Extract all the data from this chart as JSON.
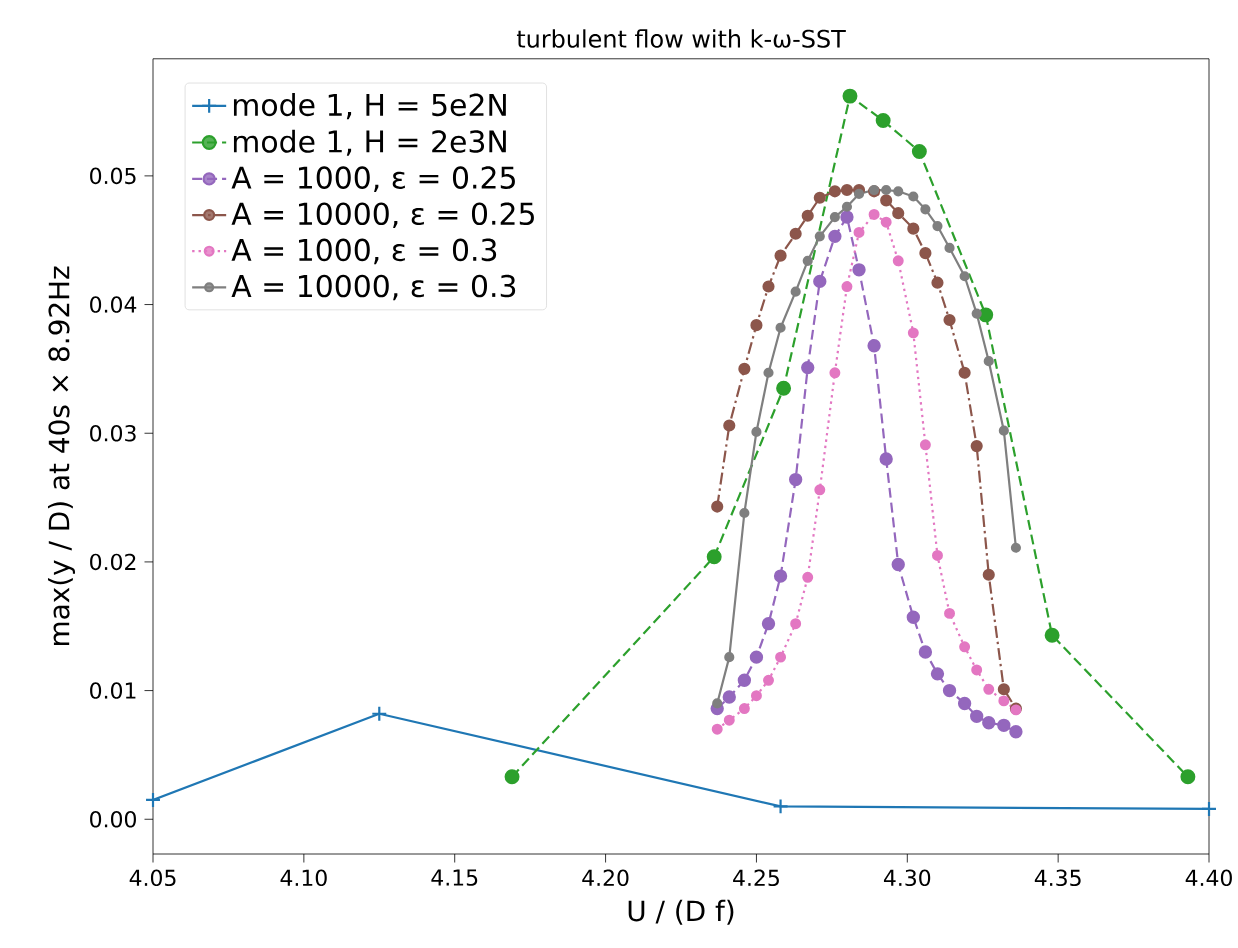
{
  "chart_data": {
    "type": "line",
    "title": "turbulent flow with k-ω-SST",
    "xlabel": "U / (D f)",
    "ylabel": "max(y / D) at 40s × 8.92Hz",
    "xlim": [
      4.05,
      4.4
    ],
    "ylim": [
      -0.0027,
      0.0591
    ],
    "xticks": [
      {
        "value": 4.05,
        "label": "4.05"
      },
      {
        "value": 4.1,
        "label": "4.10"
      },
      {
        "value": 4.15,
        "label": "4.15"
      },
      {
        "value": 4.2,
        "label": "4.20"
      },
      {
        "value": 4.25,
        "label": "4.25"
      },
      {
        "value": 4.3,
        "label": "4.30"
      },
      {
        "value": 4.35,
        "label": "4.35"
      },
      {
        "value": 4.4,
        "label": "4.40"
      }
    ],
    "yticks": [
      {
        "value": 0,
        "label": "0.00"
      },
      {
        "value": 0.01,
        "label": "0.01"
      },
      {
        "value": 0.02,
        "label": "0.02"
      },
      {
        "value": 0.03,
        "label": "0.03"
      },
      {
        "value": 0.04,
        "label": "0.04"
      },
      {
        "value": 0.05,
        "label": "0.05"
      }
    ],
    "grid": false,
    "legend": "top left",
    "series": [
      {
        "name": "mode 1, H = 5e2N",
        "color": "#1f77b4",
        "marker": "cross",
        "line_style": "solid",
        "x": [
          4.05,
          4.125,
          4.258,
          4.4
        ],
        "values": [
          0.0015,
          0.0082,
          0.001,
          0.0008
        ]
      },
      {
        "name": "mode 1, H = 2e3N",
        "color": "#2ca02c",
        "marker": "circle",
        "line_style": "dashed",
        "x": [
          4.169,
          4.236,
          4.259,
          4.281,
          4.292,
          4.304,
          4.326,
          4.348,
          4.393
        ],
        "values": [
          0.0033,
          0.0204,
          0.0335,
          0.0562,
          0.0543,
          0.0519,
          0.0392,
          0.0143,
          0.0033
        ]
      },
      {
        "name": "A = 1000, ε = 0.25",
        "color": "#9467bd",
        "marker": "circle",
        "line_style": "dashed",
        "x": [
          4.237,
          4.241,
          4.246,
          4.25,
          4.254,
          4.258,
          4.263,
          4.267,
          4.271,
          4.276,
          4.28,
          4.284,
          4.289,
          4.293,
          4.297,
          4.302,
          4.306,
          4.31,
          4.314,
          4.319,
          4.323,
          4.327,
          4.332,
          4.336
        ],
        "values": [
          0.0086,
          0.0095,
          0.0108,
          0.0126,
          0.0152,
          0.0189,
          0.0264,
          0.0351,
          0.0418,
          0.0453,
          0.0468,
          0.0427,
          0.0368,
          0.028,
          0.0198,
          0.0157,
          0.013,
          0.0113,
          0.01,
          0.009,
          0.008,
          0.0075,
          0.0073,
          0.0068
        ]
      },
      {
        "name": "A = 10000, ε = 0.25",
        "color": "#8c564b",
        "marker": "circle",
        "line_style": "dashdot",
        "x": [
          4.237,
          4.241,
          4.246,
          4.25,
          4.254,
          4.258,
          4.263,
          4.267,
          4.271,
          4.276,
          4.28,
          4.284,
          4.289,
          4.293,
          4.297,
          4.302,
          4.306,
          4.31,
          4.314,
          4.319,
          4.323,
          4.327,
          4.332,
          4.336
        ],
        "values": [
          0.0243,
          0.0306,
          0.035,
          0.0384,
          0.0414,
          0.0438,
          0.0455,
          0.0469,
          0.0483,
          0.0488,
          0.0489,
          0.0489,
          0.0488,
          0.0481,
          0.0471,
          0.0459,
          0.044,
          0.0417,
          0.0388,
          0.0347,
          0.029,
          0.019,
          0.0101,
          0.0086
        ]
      },
      {
        "name": "A = 1000, ε = 0.3",
        "color": "#e377c2",
        "marker": "circle",
        "line_style": "dotted",
        "x": [
          4.237,
          4.241,
          4.246,
          4.25,
          4.254,
          4.258,
          4.263,
          4.267,
          4.271,
          4.276,
          4.28,
          4.284,
          4.289,
          4.293,
          4.297,
          4.302,
          4.306,
          4.31,
          4.314,
          4.319,
          4.323,
          4.327,
          4.332,
          4.336
        ],
        "values": [
          0.007,
          0.0077,
          0.0086,
          0.0096,
          0.0108,
          0.0126,
          0.0152,
          0.0188,
          0.0256,
          0.0347,
          0.0414,
          0.0456,
          0.047,
          0.0464,
          0.0434,
          0.0378,
          0.0291,
          0.0205,
          0.016,
          0.0134,
          0.0116,
          0.0101,
          0.0092,
          0.0085
        ]
      },
      {
        "name": "A = 10000, ε = 0.3",
        "color": "#7f7f7f",
        "marker": "circle",
        "line_style": "solid",
        "x": [
          4.237,
          4.241,
          4.246,
          4.25,
          4.254,
          4.258,
          4.263,
          4.267,
          4.271,
          4.276,
          4.28,
          4.284,
          4.289,
          4.293,
          4.297,
          4.302,
          4.306,
          4.31,
          4.314,
          4.319,
          4.323,
          4.327,
          4.332,
          4.336
        ],
        "values": [
          0.009,
          0.0126,
          0.0238,
          0.0301,
          0.0347,
          0.0382,
          0.041,
          0.0434,
          0.0453,
          0.0468,
          0.0476,
          0.0486,
          0.0489,
          0.0489,
          0.0488,
          0.0484,
          0.0474,
          0.0461,
          0.0444,
          0.0422,
          0.0393,
          0.0356,
          0.0302,
          0.0211
        ]
      }
    ]
  }
}
